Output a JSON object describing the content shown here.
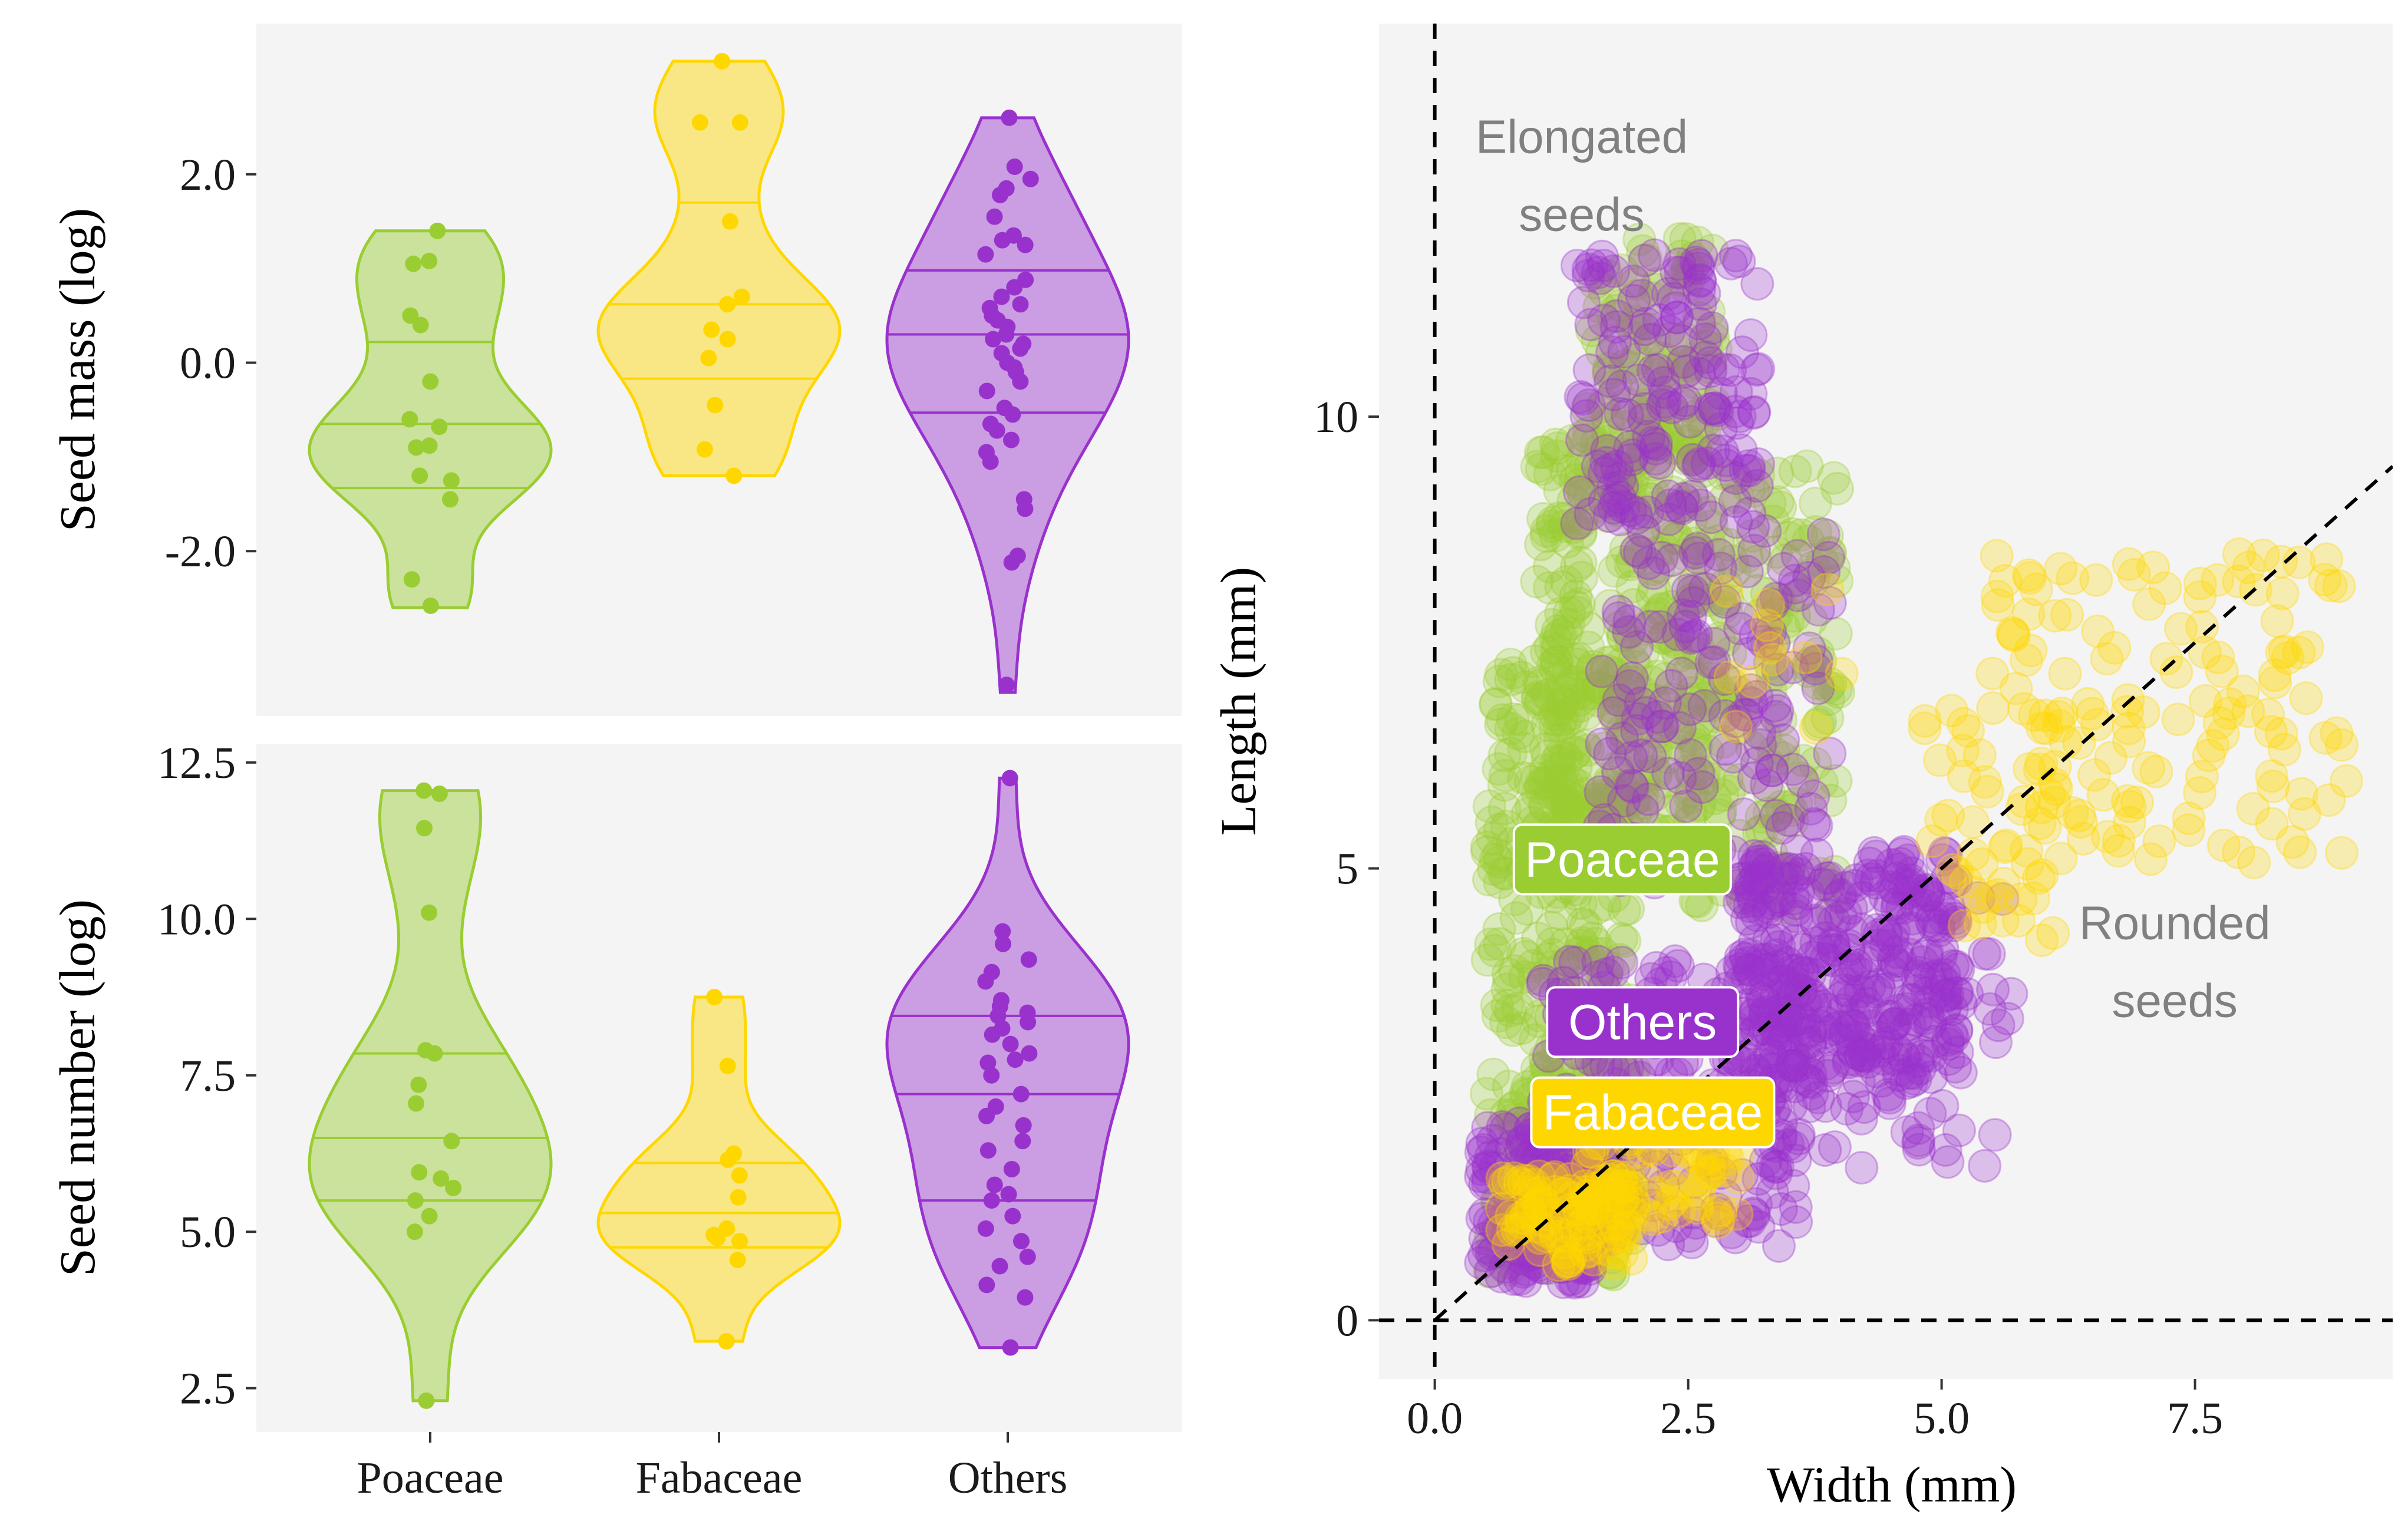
{
  "chart_data": [
    {
      "type": "violin",
      "ylabel": "Seed mass (log)",
      "categories": [
        "Poaceae",
        "Fabaceae",
        "Others"
      ],
      "colors": [
        "#9acd32",
        "#ffd700",
        "#9932cc"
      ],
      "ylim": [
        -3.75,
        3.6
      ],
      "y_ticks": [
        -2.0,
        0.0,
        2.0
      ],
      "y_tick_labels": [
        "-2.0",
        "0.0",
        "2.0"
      ],
      "series": [
        {
          "name": "Poaceae",
          "min": -2.6,
          "max": 1.4,
          "quantiles": [
            -1.33,
            -0.65,
            0.22
          ],
          "points": [
            1.4,
            1.08,
            1.05,
            0.5,
            0.4,
            -0.2,
            -0.6,
            -0.68,
            -0.88,
            -0.9,
            -1.2,
            -1.25,
            -1.45,
            -2.3,
            -2.58
          ]
        },
        {
          "name": "Fabaceae",
          "min": -1.2,
          "max": 3.2,
          "quantiles": [
            -0.17,
            0.62,
            1.7
          ],
          "points": [
            3.2,
            2.55,
            2.55,
            1.5,
            0.7,
            0.62,
            0.35,
            0.25,
            0.05,
            -0.45,
            -0.92,
            -1.2
          ]
        },
        {
          "name": "Others",
          "min": -3.5,
          "max": 2.6,
          "quantiles": [
            -0.53,
            0.3,
            0.98
          ],
          "points": [
            2.6,
            2.08,
            1.95,
            1.85,
            1.78,
            1.55,
            1.35,
            1.3,
            1.25,
            1.15,
            0.88,
            0.8,
            0.7,
            0.62,
            0.58,
            0.5,
            0.45,
            0.38,
            0.3,
            0.25,
            0.2,
            0.15,
            0.1,
            0.0,
            -0.05,
            -0.1,
            -0.2,
            -0.3,
            -0.48,
            -0.55,
            -0.65,
            -0.72,
            -0.82,
            -0.95,
            -1.05,
            -1.45,
            -1.55,
            -2.05,
            -2.12,
            -3.42
          ]
        }
      ]
    },
    {
      "type": "violin",
      "ylabel": "Seed number (log)",
      "xlabel": "",
      "categories": [
        "Poaceae",
        "Fabaceae",
        "Others"
      ],
      "colors": [
        "#9acd32",
        "#ffd700",
        "#9932cc"
      ],
      "ylim": [
        1.8,
        12.8
      ],
      "y_ticks": [
        2.5,
        5.0,
        7.5,
        10.0,
        12.5
      ],
      "y_tick_labels": [
        "2.5",
        "5.0",
        "7.5",
        "10.0",
        "12.5"
      ],
      "x_tick_labels": [
        "Poaceae",
        "Fabaceae",
        "Others"
      ],
      "series": [
        {
          "name": "Poaceae",
          "min": 2.3,
          "max": 12.05,
          "quantiles": [
            5.5,
            6.5,
            7.85
          ],
          "points": [
            12.05,
            12.0,
            11.45,
            10.1,
            7.9,
            7.85,
            7.35,
            7.05,
            6.45,
            5.95,
            5.85,
            5.7,
            5.5,
            5.25,
            5.0,
            2.3
          ]
        },
        {
          "name": "Fabaceae",
          "min": 3.25,
          "max": 8.75,
          "quantiles": [
            4.75,
            5.3,
            6.1
          ],
          "points": [
            8.75,
            7.65,
            6.25,
            6.15,
            5.9,
            5.55,
            5.05,
            4.95,
            4.9,
            4.85,
            4.55,
            3.25
          ]
        },
        {
          "name": "Others",
          "min": 3.15,
          "max": 12.25,
          "quantiles": [
            5.5,
            7.2,
            8.45
          ],
          "points": [
            12.25,
            9.8,
            9.6,
            9.35,
            9.15,
            9.0,
            8.7,
            8.6,
            8.5,
            8.45,
            8.35,
            8.25,
            8.15,
            8.0,
            7.85,
            7.75,
            7.7,
            7.5,
            7.2,
            7.0,
            6.85,
            6.7,
            6.45,
            6.3,
            6.0,
            5.75,
            5.6,
            5.5,
            5.25,
            5.05,
            4.85,
            4.6,
            4.45,
            4.15,
            3.95,
            3.15
          ]
        }
      ]
    },
    {
      "type": "scatter",
      "xlabel": "Width (mm)",
      "ylabel": "Length (mm)",
      "xlim": [
        -0.55,
        9.45
      ],
      "ylim": [
        -0.65,
        14.35
      ],
      "x_ticks": [
        0.0,
        2.5,
        5.0,
        7.5
      ],
      "x_tick_labels": [
        "0.0",
        "2.5",
        "5.0",
        "7.5"
      ],
      "y_ticks": [
        0,
        5,
        10
      ],
      "y_tick_labels": [
        "0",
        "5",
        "10"
      ],
      "reference_lines": [
        "x = 0",
        "y = 0",
        "y = x"
      ],
      "series": [
        {
          "name": "Poaceae",
          "color": "#9acd32",
          "clusters": [
            {
              "x": 0.5,
              "y": 0.5,
              "w": 1.5,
              "h": 6.8,
              "n": 380
            },
            {
              "x": 1.0,
              "y": 5.0,
              "w": 1.6,
              "h": 4.8,
              "n": 320
            },
            {
              "x": 1.5,
              "y": 9.5,
              "w": 1.3,
              "h": 2.5,
              "n": 110
            },
            {
              "x": 2.5,
              "y": 4.5,
              "w": 1.5,
              "h": 5.0,
              "n": 180
            },
            {
              "x": 0.8,
              "y": 0.8,
              "w": 0.8,
              "h": 2.0,
              "n": 80
            }
          ]
        },
        {
          "name": "Others",
          "color": "#9932cc",
          "clusters": [
            {
              "x": 0.45,
              "y": 0.4,
              "w": 1.1,
              "h": 1.8,
              "n": 160
            },
            {
              "x": 1.0,
              "y": 0.8,
              "w": 2.6,
              "h": 3.2,
              "n": 230
            },
            {
              "x": 3.0,
              "y": 2.6,
              "w": 2.2,
              "h": 2.6,
              "n": 330
            },
            {
              "x": 1.6,
              "y": 4.8,
              "w": 2.3,
              "h": 4.0,
              "n": 160
            },
            {
              "x": 1.4,
              "y": 8.8,
              "w": 1.8,
              "h": 3.0,
              "n": 160
            },
            {
              "x": 3.2,
              "y": 1.6,
              "w": 2.5,
              "h": 3.3,
              "n": 100
            }
          ]
        },
        {
          "name": "Fabaceae",
          "color": "#ffd700",
          "clusters": [
            {
              "x": 0.65,
              "y": 0.6,
              "w": 1.3,
              "h": 1.0,
              "n": 110
            },
            {
              "x": 1.5,
              "y": 1.0,
              "w": 1.5,
              "h": 1.0,
              "n": 60
            },
            {
              "x": 4.8,
              "y": 4.2,
              "w": 1.3,
              "h": 2.6,
              "n": 45
            },
            {
              "x": 5.5,
              "y": 5.0,
              "w": 3.5,
              "h": 3.5,
              "n": 140
            },
            {
              "x": 2.8,
              "y": 6.2,
              "w": 1.5,
              "h": 2.0,
              "n": 12
            }
          ]
        }
      ],
      "labels": [
        {
          "text": "Poaceae",
          "x": 1.85,
          "y": 5.1,
          "color": "#9acd32"
        },
        {
          "text": "Others",
          "x": 2.05,
          "y": 3.3,
          "color": "#9932cc"
        },
        {
          "text": "Fabaceae",
          "x": 2.15,
          "y": 2.3,
          "color": "#ffd700"
        }
      ],
      "annotations": [
        {
          "line1": "Elongated",
          "line2": "seeds",
          "x": 1.45,
          "y": 13.1
        },
        {
          "line1": "Rounded",
          "line2": "seeds",
          "x": 7.3,
          "y": 4.4
        }
      ]
    }
  ]
}
